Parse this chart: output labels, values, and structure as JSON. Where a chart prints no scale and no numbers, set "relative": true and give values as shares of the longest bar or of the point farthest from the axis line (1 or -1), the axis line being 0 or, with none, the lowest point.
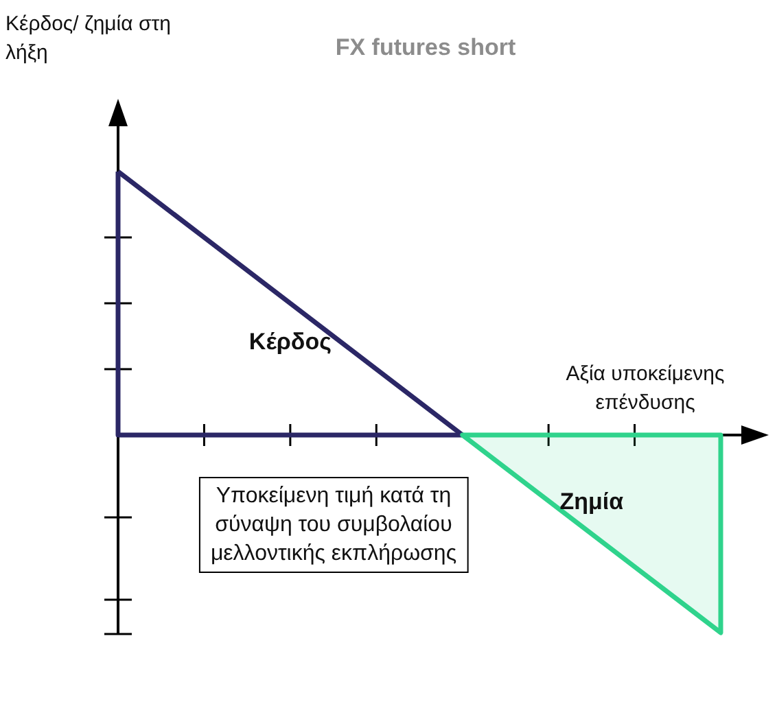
{
  "chart_data": {
    "type": "line",
    "title": "FX futures short",
    "xlabel": "Αξία υποκείμενης επένδυσης",
    "relative": true,
    "categories": [
      null,
      null,
      null,
      null,
      null,
      null,
      null,
      null
    ],
    "series": [
      {
        "name": "Κέρδος",
        "color": "#2b2766",
        "values": [
          1,
          0.75,
          0.5,
          0.25,
          0,
          null,
          null,
          null
        ]
      },
      {
        "name": "Ζημία",
        "type": "area",
        "color": "#2fd38c",
        "values": [
          null,
          null,
          null,
          null,
          0,
          -0.25,
          -0.5,
          -0.75
        ]
      }
    ],
    "annotations": [
      "Κέρδος/ ζημία στη λήξη",
      "Υποκείμενη τιμή κατά τη σύναψη του συμβολαίου μελλοντικής εκπλήρωσης"
    ]
  }
}
